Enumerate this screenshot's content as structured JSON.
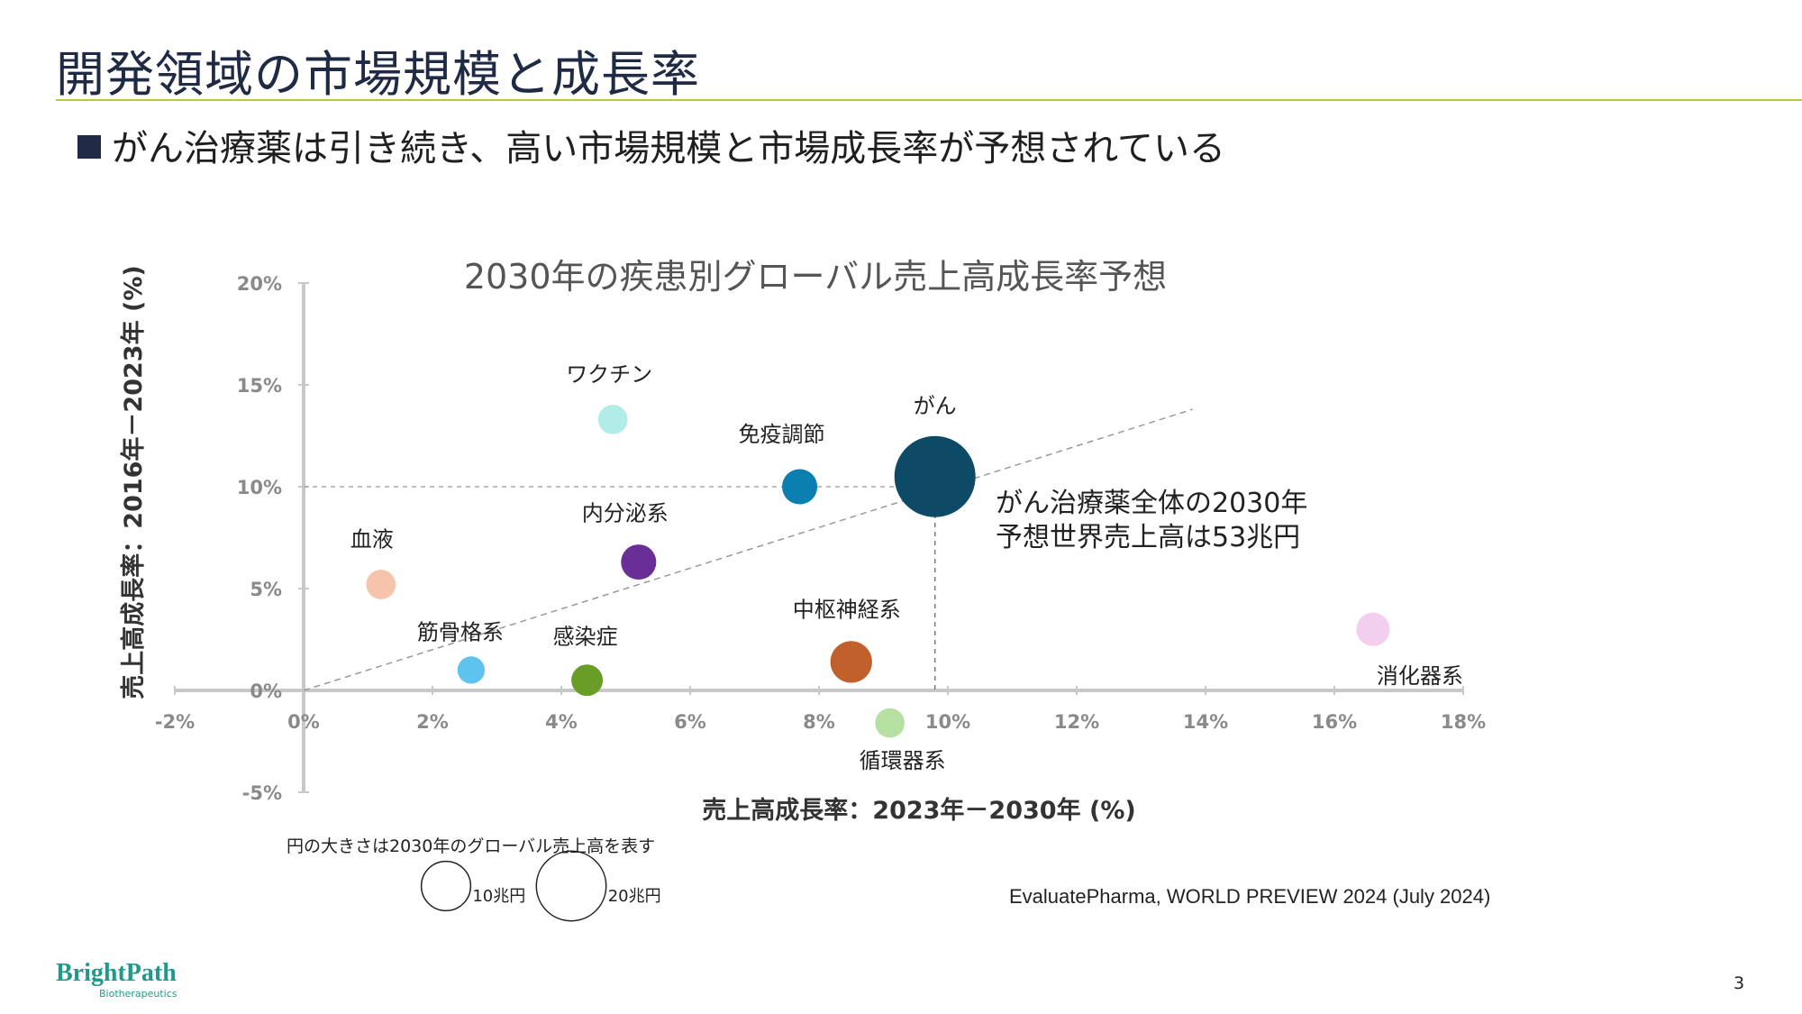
{
  "page_title": "開発領域の市場規模と成長率",
  "subtitle": "がん治療薬は引き続き、高い市場規模と市場成長率が予想されている",
  "source": "EvaluatePharma, WORLD PREVIEW 2024 (July 2024)",
  "size_note": "円の大きさは2030年のグローバル売上高を表す",
  "logo": {
    "name": "BrightPath",
    "sub": "Biotherapeutics"
  },
  "page_number": "3",
  "chart_data": {
    "type": "scatter",
    "title": "2030年の疾患別グローバル売上高成長率予想",
    "xlabel": "売上高成長率：2023年－2030年 (%)",
    "ylabel": "売上高成長率：2016年－2023年 (%)",
    "xlim": [
      -2,
      18
    ],
    "ylim": [
      -5,
      20
    ],
    "x_ticks": [
      "-2%",
      "0%",
      "2%",
      "4%",
      "6%",
      "8%",
      "10%",
      "12%",
      "14%",
      "16%",
      "18%"
    ],
    "y_ticks": [
      "20%",
      "15%",
      "10%",
      "5%",
      "0%",
      "-5%"
    ],
    "points": [
      {
        "label": "がん",
        "x": 9.8,
        "y": 10.5,
        "size": 53,
        "color": "#0d4a66"
      },
      {
        "label": "ワクチン",
        "x": 4.8,
        "y": 13.3,
        "size": 7,
        "color": "#b2ece6"
      },
      {
        "label": "免疫調節",
        "x": 7.7,
        "y": 10.0,
        "size": 10,
        "color": "#0b7fb0"
      },
      {
        "label": "内分泌系",
        "x": 5.2,
        "y": 6.3,
        "size": 10,
        "color": "#6a2f96"
      },
      {
        "label": "血液",
        "x": 1.2,
        "y": 5.2,
        "size": 7,
        "color": "#f5c4aa"
      },
      {
        "label": "筋骨格系",
        "x": 2.6,
        "y": 1.0,
        "size": 6,
        "color": "#5ec4ef"
      },
      {
        "label": "感染症",
        "x": 4.4,
        "y": 0.5,
        "size": 8,
        "color": "#6a9c28"
      },
      {
        "label": "中枢神経系",
        "x": 8.5,
        "y": 1.4,
        "size": 14,
        "color": "#c0602a"
      },
      {
        "label": "循環器系",
        "x": 9.1,
        "y": -1.6,
        "size": 7,
        "color": "#b5e0a2"
      },
      {
        "label": "消化器系",
        "x": 16.6,
        "y": 3.0,
        "size": 9,
        "color": "#f2cfee"
      }
    ],
    "annotation": [
      "がん治療薬全体の2030年",
      "予想世界売上高は53兆円"
    ],
    "size_legend": [
      {
        "label": "10兆円",
        "size": 10
      },
      {
        "label": "20兆円",
        "size": 20
      }
    ],
    "trend_line": {
      "from": [
        0,
        0
      ],
      "to": [
        13.8,
        13.8
      ]
    },
    "reference_lines": {
      "y": 10,
      "x": 9.8
    }
  }
}
